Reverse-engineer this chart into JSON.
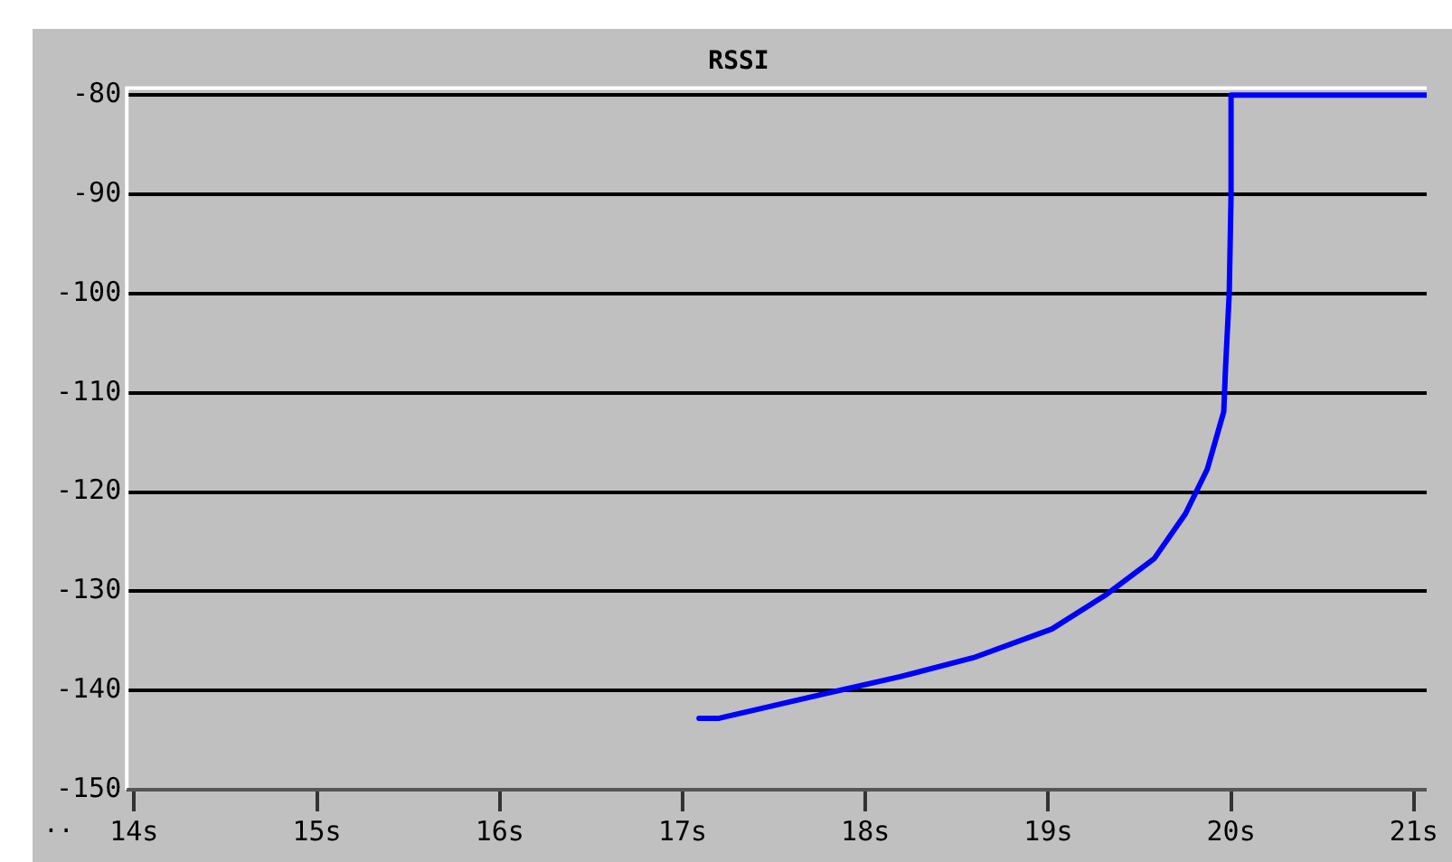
{
  "chart_data": {
    "type": "line",
    "title": "RSSI",
    "x": [
      17.09,
      17.2,
      17.76,
      18.19,
      18.59,
      19.02,
      19.32,
      19.58,
      19.75,
      19.87,
      19.96,
      19.97,
      19.99,
      20.0,
      20.0,
      21.07
    ],
    "series": [
      {
        "color": "#0000ff",
        "values": [
          -142.8,
          -142.8,
          -140.4,
          -138.6,
          -136.7,
          -133.8,
          -130.3,
          -126.7,
          -122.2,
          -117.7,
          -111.9,
          -107.4,
          -100,
          -90,
          -80,
          -80
        ]
      }
    ],
    "xlim": [
      13.96,
      21.07
    ],
    "xticks": [
      {
        "value": 14,
        "label": "14s"
      },
      {
        "value": 15,
        "label": "15s"
      },
      {
        "value": 16,
        "label": "16s"
      },
      {
        "value": 17,
        "label": "17s"
      },
      {
        "value": 18,
        "label": "18s"
      },
      {
        "value": 19,
        "label": "19s"
      },
      {
        "value": 20,
        "label": "20s"
      },
      {
        "value": 21,
        "label": "21s"
      }
    ],
    "ylim": [
      -150,
      -79.3
    ],
    "yticks": [
      -150,
      -140,
      -130,
      -120,
      -110,
      -100,
      -90,
      -80
    ],
    "grid": "y",
    "legend": false,
    "marker": "none",
    "line_style": "solid",
    "annotations": [
      ".."
    ]
  }
}
